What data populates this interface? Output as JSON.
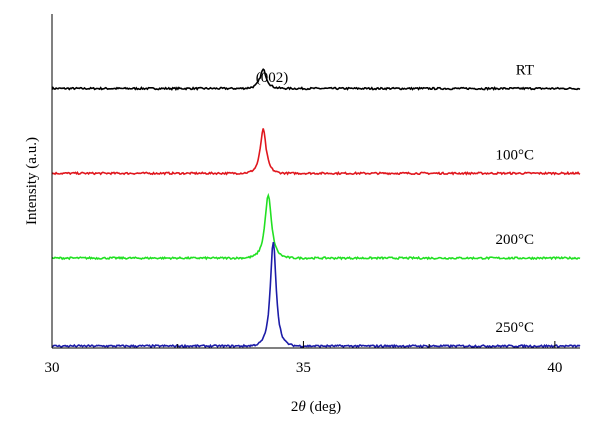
{
  "chart_data": {
    "type": "line",
    "title": "",
    "xlabel": "2θ (deg)",
    "xlabel_prefix": "2",
    "xlabel_symbol": "θ",
    "xlabel_suffix": " (deg)",
    "ylabel": "Intensity (a.u.)",
    "xlim": [
      30,
      40.5
    ],
    "xticks": [
      30,
      35,
      40
    ],
    "xtick_labels": [
      "30",
      "35",
      "40"
    ],
    "y_tick_labels_shown": false,
    "grid": false,
    "legend": "none (series labelled inline at right)",
    "annotations": [
      {
        "text": "(002)",
        "x": 34.2
      }
    ],
    "series": [
      {
        "name": "RT",
        "color": "#000000",
        "baseline": 0.82,
        "peak_x": 34.2,
        "peak_height": 0.06,
        "peak_width": 0.1
      },
      {
        "name": "100°C",
        "color": "#e0171e",
        "baseline": 0.55,
        "peak_x": 34.2,
        "peak_height": 0.14,
        "peak_width": 0.09
      },
      {
        "name": "200°C",
        "color": "#22e022",
        "baseline": 0.28,
        "peak_x": 34.3,
        "peak_height": 0.2,
        "peak_width": 0.1
      },
      {
        "name": "250°C",
        "color": "#1c1ca8",
        "baseline": 0.0,
        "peak_x": 34.4,
        "peak_height": 0.33,
        "peak_width": 0.09
      }
    ]
  }
}
